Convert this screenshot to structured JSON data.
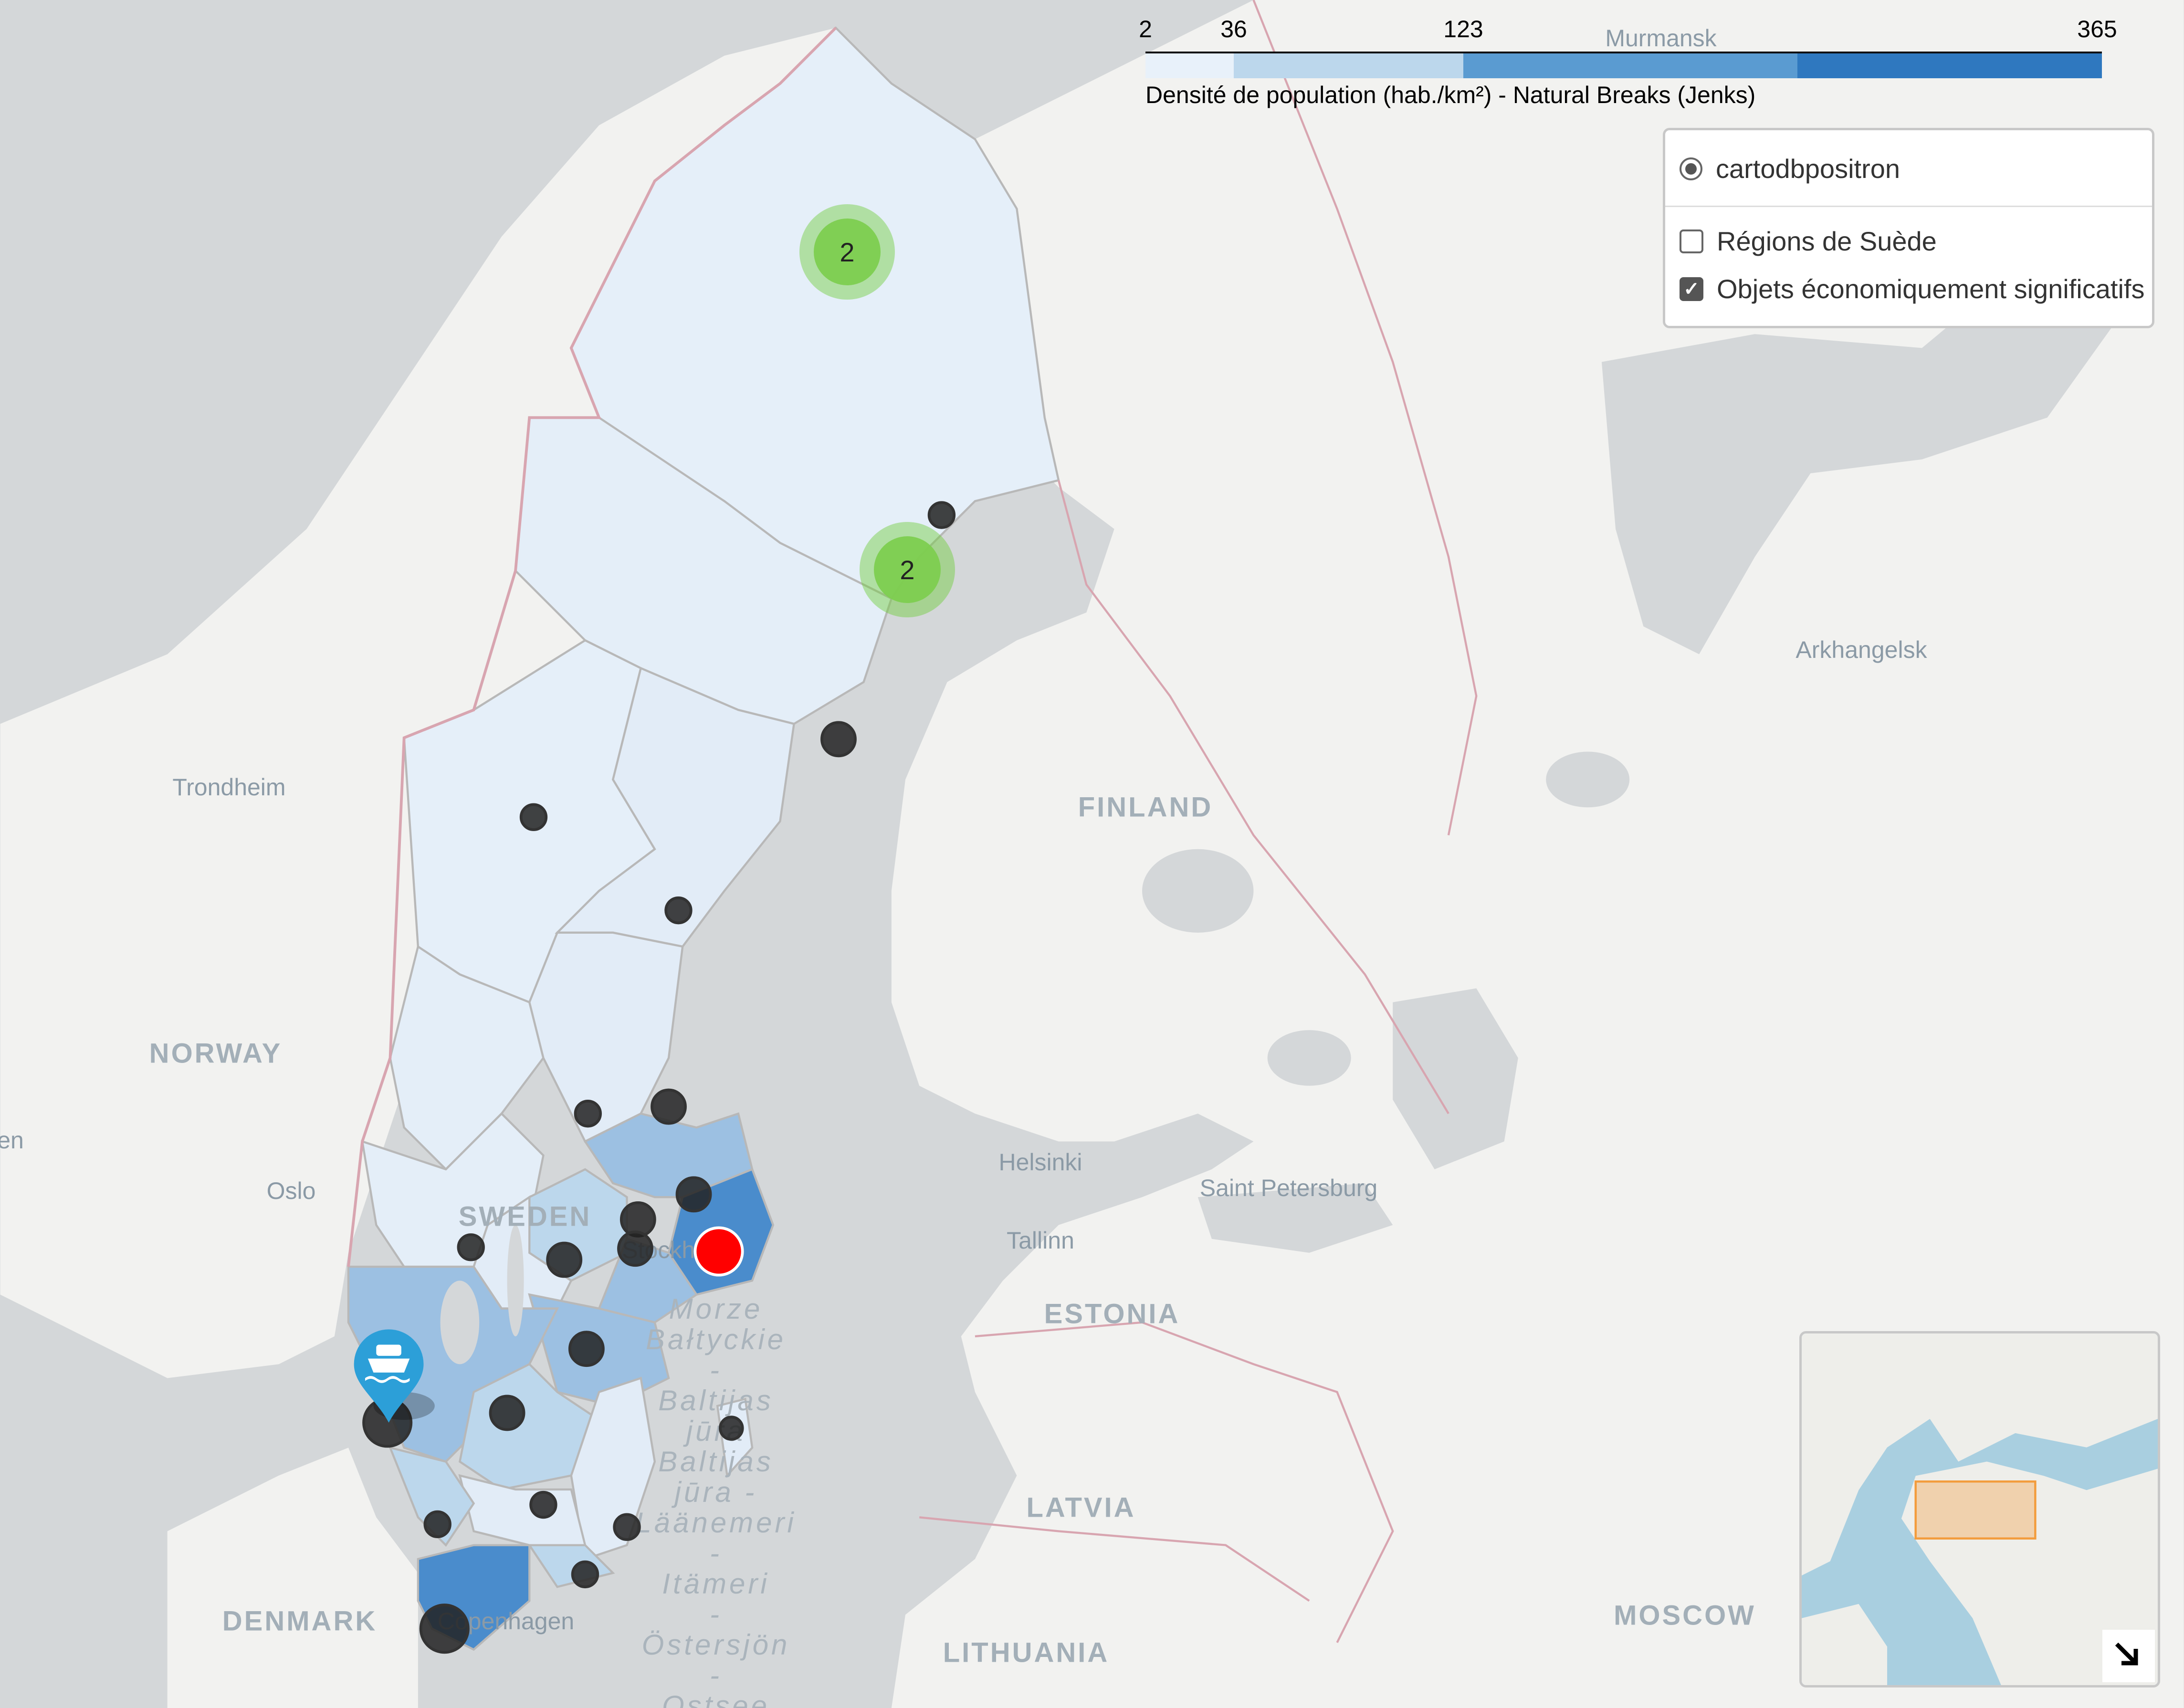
{
  "map": {
    "places": {
      "murmansk": "Murmansk",
      "arkhangelsk": "Arkhangelsk",
      "trondheim": "Trondheim",
      "finland": "FINLAND",
      "norway": "NORWAY",
      "helsinki": "Helsinki",
      "saint_petersburg": "Saint Petersburg",
      "oslo": "Oslo",
      "tallinn": "Tallinn",
      "sweden": "SWEDEN",
      "stockholm": "Stockholm",
      "estonia": "ESTONIA",
      "latvia": "LATVIA",
      "denmark": "DENMARK",
      "copenhagen": "Copenhagen",
      "moscow": "MOSCOW",
      "lithuania": "LITHUANIA",
      "bergen_partial": "en"
    },
    "sea_labels": [
      "Morze",
      "Bałtyckie",
      "-",
      "Baltijas",
      "jūra",
      "Baltijas",
      "jūra -",
      "Läänemeri",
      "-",
      "Itämeri",
      "-",
      "Östersjön",
      "-",
      "Ostsee"
    ]
  },
  "legend": {
    "ticks": [
      "2",
      "36",
      "123",
      "365"
    ],
    "caption": "Densité de population (hab./km²) - Natural Breaks (Jenks)",
    "colors": [
      "#e8f1fa",
      "#bcd7ec",
      "#5a9bd1",
      "#2f78bf"
    ]
  },
  "layer_control": {
    "base_layer": "cartodbpositron",
    "overlays": [
      {
        "label": "Régions de Suède",
        "checked": false
      },
      {
        "label": "Objets économiquement significatifs",
        "checked": true
      }
    ]
  },
  "clusters": [
    "2",
    "2"
  ],
  "markers": {
    "highlight_color": "#ff0000",
    "point_color": "#222222",
    "ferry_pin_color": "#2c9fd8",
    "ferry_icon": "ferry-icon"
  },
  "minimap": {
    "toggle_icon": "arrow-down-right-icon",
    "extent_color": "#f39c3c"
  }
}
